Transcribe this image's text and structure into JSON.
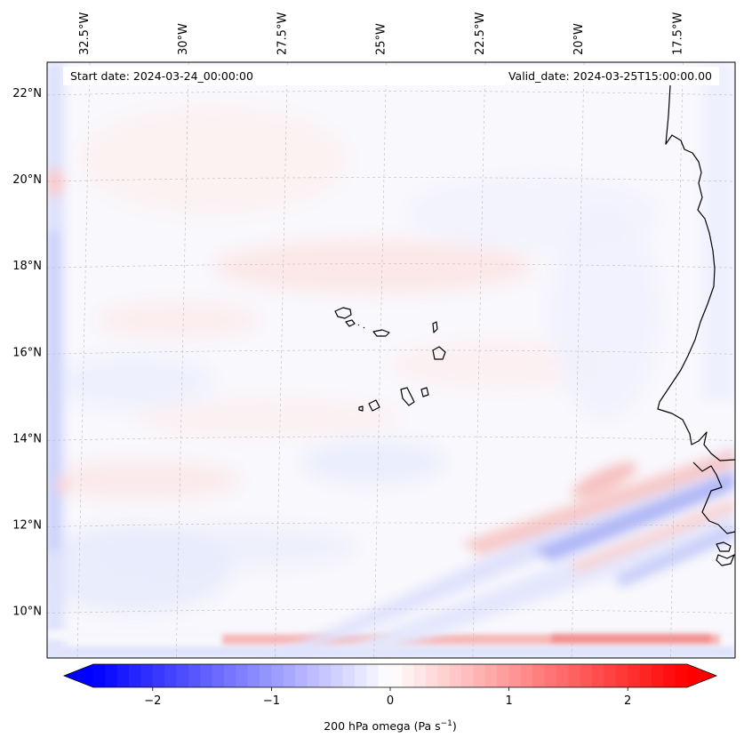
{
  "header": {
    "start_date": "Start date: 2024-03-24_00:00:00",
    "valid_date": "Valid_date: 2024-03-25T15:00:00.00"
  },
  "map": {
    "lon_labels": [
      "32.5°W",
      "30°W",
      "27.5°W",
      "25°W",
      "22.5°W",
      "20°W",
      "17.5°W"
    ],
    "lat_labels": [
      "22°N",
      "20°N",
      "18°N",
      "16°N",
      "14°N",
      "12°N",
      "10°N"
    ],
    "lon_values": [
      -32.5,
      -30,
      -27.5,
      -25,
      -22.5,
      -20,
      -17.5
    ],
    "lat_values": [
      22,
      20,
      18,
      16,
      14,
      12,
      10
    ],
    "lon_range": [
      -33.4,
      -16.0
    ],
    "lat_range": [
      8.9,
      22.7
    ]
  },
  "colorbar": {
    "label": "200 hPa omega (Pa s",
    "label_exp": "−1",
    "label_close": ")",
    "ticks": [
      "−2",
      "−1",
      "0",
      "1",
      "2"
    ],
    "tick_values": [
      -2,
      -1,
      0,
      1,
      2
    ],
    "range": [
      -2.5,
      2.5
    ],
    "colors": {
      "negative": "#0000ff",
      "zero": "#ffffff",
      "positive": "#ff0000"
    }
  }
}
